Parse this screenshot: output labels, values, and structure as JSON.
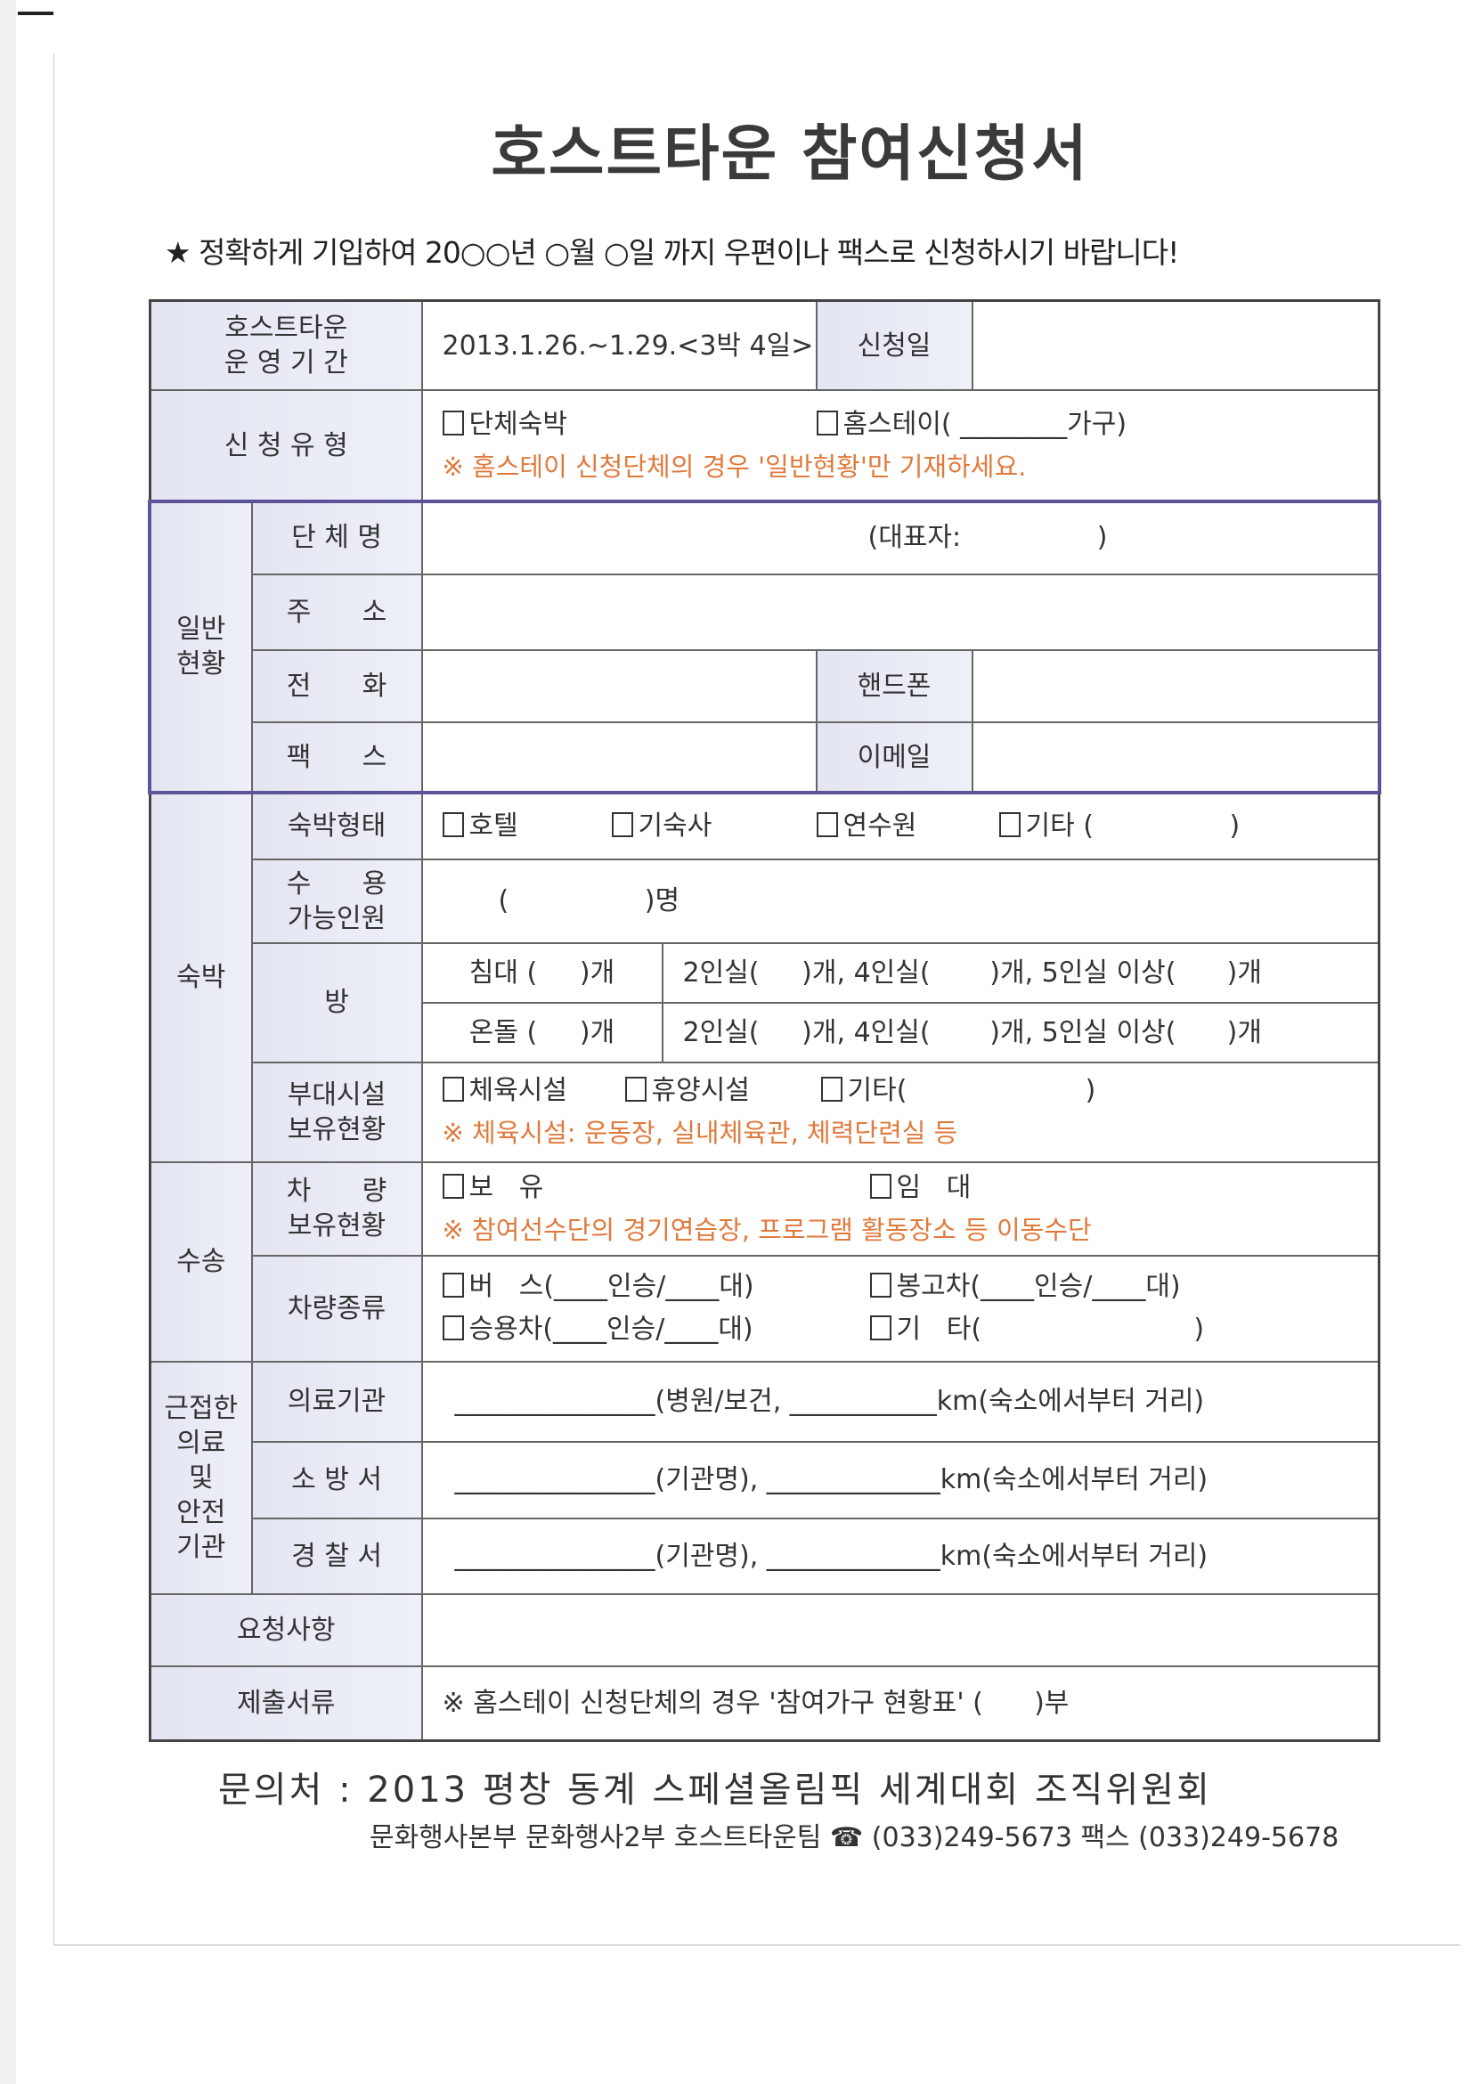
{
  "title": "호스트타운 참여신청서",
  "notice": "★ 정확하게 기입하여 20○○년 ○월 ○일 까지 우편이나 팩스로 신청하시기 바랍니다!",
  "period": {
    "label_1": "호스트타운",
    "label_2": "운 영 기 간",
    "value": "2013.1.26.~1.29.<3박 4일>",
    "apply_date_label": "신청일"
  },
  "apply_type": {
    "label": "신 청 유 형",
    "option_group": "단체숙박",
    "option_homestay": "홈스테이( ________가구)",
    "note": "※ 홈스테이 신청단체의 경우 '일반현황'만 기재하세요."
  },
  "general": {
    "label_1": "일반",
    "label_2": "현황",
    "group_name": "단 체 명",
    "representative": "(대표자:                )",
    "address": "주      소",
    "phone": "전      화",
    "mobile": "핸드폰",
    "fax": "팩      스",
    "email": "이메일"
  },
  "lodging": {
    "label": "숙박",
    "type_label": "숙박형태",
    "types": [
      "호텔",
      "기숙사",
      "연수원",
      "기타 (                )"
    ],
    "capacity_label_1": "수      용",
    "capacity_label_2": "가능인원",
    "capacity_value": "(                )명",
    "room_label": "방",
    "bed": "침대 (     )개",
    "ondol": "온돌 (     )개",
    "rooms_bed": "2인실(     )개, 4인실(       )개, 5인실 이상(      )개",
    "rooms_ondol": "2인실(     )개, 4인실(       )개, 5인실 이상(      )개",
    "facility_label_1": "부대시설",
    "facility_label_2": "보유현황",
    "facilities": [
      "체육시설",
      "휴양시설",
      "기타(                     )"
    ],
    "facility_note": "※ 체육시설: 운동장, 실내체육관, 체력단련실 등"
  },
  "transport": {
    "label": "수송",
    "vehicle_label_1": "차      량",
    "vehicle_label_2": "보유현황",
    "own": "보   유",
    "rent": "임   대",
    "vehicle_note": "※ 참여선수단의 경기연습장, 프로그램 활동장소 등 이동수단",
    "kind_label": "차량종류",
    "kinds": [
      "버   스(____인승/____대)",
      "봉고차(____인승/____대)",
      "승용차(____인승/____대)",
      "기   타(                         )"
    ]
  },
  "safety": {
    "label_1": "근접한",
    "label_2": "의료",
    "label_3": "및",
    "label_4": "안전",
    "label_5": "기관",
    "medical_label": "의료기관",
    "medical_value": "_______________(병원/보건, ___________km(숙소에서부터 거리)",
    "fire_label": "소 방 서",
    "fire_value": "_______________(기관명), _____________km(숙소에서부터 거리)",
    "police_label": "경 찰 서",
    "police_value": "_______________(기관명), _____________km(숙소에서부터 거리)"
  },
  "request_label": "요청사항",
  "documents": {
    "label": "제출서류",
    "value": "※ 홈스테이 신청단체의 경우 '참여가구 현황표' (      )부"
  },
  "footer": {
    "contact": "문의처 : 2013 평창 동계 스페셜올림픽 세계대회 조직위원회",
    "dept": "문화행사본부 문화행사2부 호스트타운팀 ☎ (033)249-5673 팩스 (033)249-5678"
  },
  "colors": {
    "accent_orange": "#e07a3c",
    "group_border": "#5d5399",
    "header_fill": "#e3e6f2"
  }
}
